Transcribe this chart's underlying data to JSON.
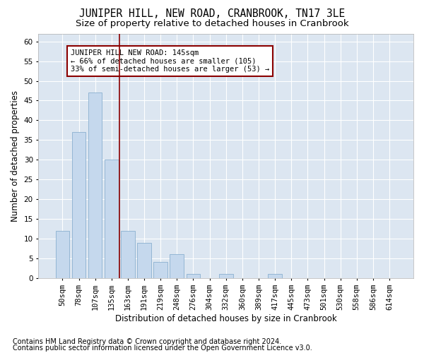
{
  "title": "JUNIPER HILL, NEW ROAD, CRANBROOK, TN17 3LE",
  "subtitle": "Size of property relative to detached houses in Cranbrook",
  "xlabel": "Distribution of detached houses by size in Cranbrook",
  "ylabel": "Number of detached properties",
  "categories": [
    "50sqm",
    "78sqm",
    "107sqm",
    "135sqm",
    "163sqm",
    "191sqm",
    "219sqm",
    "248sqm",
    "276sqm",
    "304sqm",
    "332sqm",
    "360sqm",
    "389sqm",
    "417sqm",
    "445sqm",
    "473sqm",
    "501sqm",
    "530sqm",
    "558sqm",
    "586sqm",
    "614sqm"
  ],
  "values": [
    12,
    37,
    47,
    30,
    12,
    9,
    4,
    6,
    1,
    0,
    1,
    0,
    0,
    1,
    0,
    0,
    0,
    0,
    0,
    0,
    0
  ],
  "bar_color": "#c5d8ed",
  "bar_edge_color": "#8ab0d0",
  "bar_width": 0.85,
  "ylim": [
    0,
    62
  ],
  "yticks": [
    0,
    5,
    10,
    15,
    20,
    25,
    30,
    35,
    40,
    45,
    50,
    55,
    60
  ],
  "vline_x_idx": 3,
  "vline_color": "#8b0000",
  "annotation_text": "JUNIPER HILL NEW ROAD: 145sqm\n← 66% of detached houses are smaller (105)\n33% of semi-detached houses are larger (53) →",
  "annotation_box_color": "#ffffff",
  "annotation_box_edgecolor": "#8b0000",
  "footnote1": "Contains HM Land Registry data © Crown copyright and database right 2024.",
  "footnote2": "Contains public sector information licensed under the Open Government Licence v3.0.",
  "bg_color": "#ffffff",
  "plot_bg_color": "#dce6f1",
  "grid_color": "#ffffff",
  "title_fontsize": 10.5,
  "subtitle_fontsize": 9.5,
  "xlabel_fontsize": 8.5,
  "ylabel_fontsize": 8.5,
  "tick_fontsize": 7.5,
  "annotation_fontsize": 7.5,
  "footnote_fontsize": 7
}
